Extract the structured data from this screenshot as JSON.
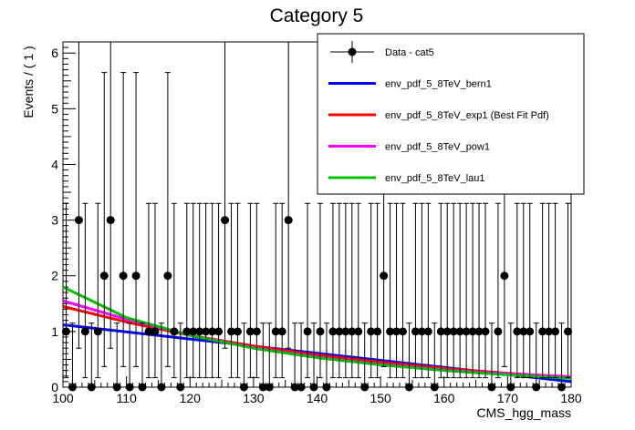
{
  "chart_data": {
    "type": "scatter",
    "title": "Category 5",
    "xlabel": "CMS_hgg_mass",
    "ylabel": "Events / ( 1 )",
    "xlim": [
      100,
      180
    ],
    "ylim": [
      0,
      6.2
    ],
    "xticks": [
      "100",
      "110",
      "120",
      "130",
      "140",
      "150",
      "160",
      "170",
      "180"
    ],
    "yticks": [
      "0",
      "1",
      "2",
      "3",
      "4",
      "5",
      "6"
    ],
    "grid": false,
    "legend_position": "top-right",
    "data": {
      "name": "Data - cat5",
      "color": "#000000",
      "x": [
        100.5,
        101.5,
        102.5,
        103.5,
        104.5,
        105.5,
        106.5,
        107.5,
        108.5,
        109.5,
        110.5,
        111.5,
        112.5,
        113.5,
        114.5,
        115.5,
        116.5,
        117.5,
        118.5,
        119.5,
        120.5,
        121.5,
        122.5,
        123.5,
        124.5,
        125.5,
        126.5,
        127.5,
        128.5,
        129.5,
        130.5,
        131.5,
        132.5,
        133.5,
        134.5,
        135.5,
        136.5,
        137.5,
        138.5,
        139.5,
        140.5,
        141.5,
        142.5,
        143.5,
        144.5,
        145.5,
        146.5,
        147.5,
        148.5,
        149.5,
        150.5,
        151.5,
        152.5,
        153.5,
        154.5,
        155.5,
        156.5,
        157.5,
        158.5,
        159.5,
        160.5,
        161.5,
        162.5,
        163.5,
        164.5,
        165.5,
        166.5,
        167.5,
        168.5,
        169.5,
        170.5,
        171.5,
        172.5,
        173.5,
        174.5,
        175.5,
        176.5,
        177.5,
        178.5,
        179.5
      ],
      "y": [
        1,
        0,
        3,
        1,
        0,
        1,
        2,
        3,
        0,
        2,
        0,
        2,
        0,
        1,
        1,
        0,
        2,
        1,
        0,
        1,
        1,
        1,
        1,
        1,
        1,
        3,
        1,
        1,
        0,
        1,
        1,
        0,
        0,
        1,
        1,
        3,
        0,
        0,
        1,
        0,
        1,
        0,
        1,
        1,
        1,
        1,
        1,
        0,
        1,
        1,
        2,
        1,
        1,
        1,
        0,
        1,
        1,
        1,
        0,
        1,
        1,
        1,
        1,
        1,
        1,
        1,
        1,
        0,
        1,
        2,
        0,
        1,
        1,
        1,
        0,
        1,
        1,
        1,
        0,
        1
      ],
      "err_low": {
        "0": 0,
        "1": 0.83,
        "2": 1.63,
        "3": 2.3
      },
      "err_high": {
        "0": 1.15,
        "1": 2.3,
        "2": 3.65,
        "3": 4.64
      }
    },
    "series": [
      {
        "name": "env_pdf_5_8TeV_bern1",
        "color": "#0000ff",
        "x": [
          100,
          180
        ],
        "y": [
          1.12,
          0.1
        ]
      },
      {
        "name": "env_pdf_5_8TeV_exp1 (Best Fit Pdf)",
        "color": "#ff0000",
        "x": [
          100,
          110,
          120,
          130,
          140,
          150,
          160,
          170,
          180
        ],
        "y": [
          1.45,
          1.17,
          0.93,
          0.74,
          0.58,
          0.45,
          0.34,
          0.25,
          0.18
        ]
      },
      {
        "name": "env_pdf_5_8TeV_pow1",
        "color": "#ff00ff",
        "x": [
          100,
          110,
          120,
          130,
          140,
          150,
          160,
          170,
          180
        ],
        "y": [
          1.55,
          1.22,
          0.93,
          0.71,
          0.54,
          0.41,
          0.31,
          0.24,
          0.19
        ]
      },
      {
        "name": "env_pdf_5_8TeV_lau1",
        "color": "#00c000",
        "x": [
          100,
          110,
          120,
          130,
          140,
          150,
          160,
          170,
          180
        ],
        "y": [
          1.8,
          1.25,
          0.93,
          0.7,
          0.53,
          0.4,
          0.3,
          0.22,
          0.16
        ]
      }
    ]
  }
}
